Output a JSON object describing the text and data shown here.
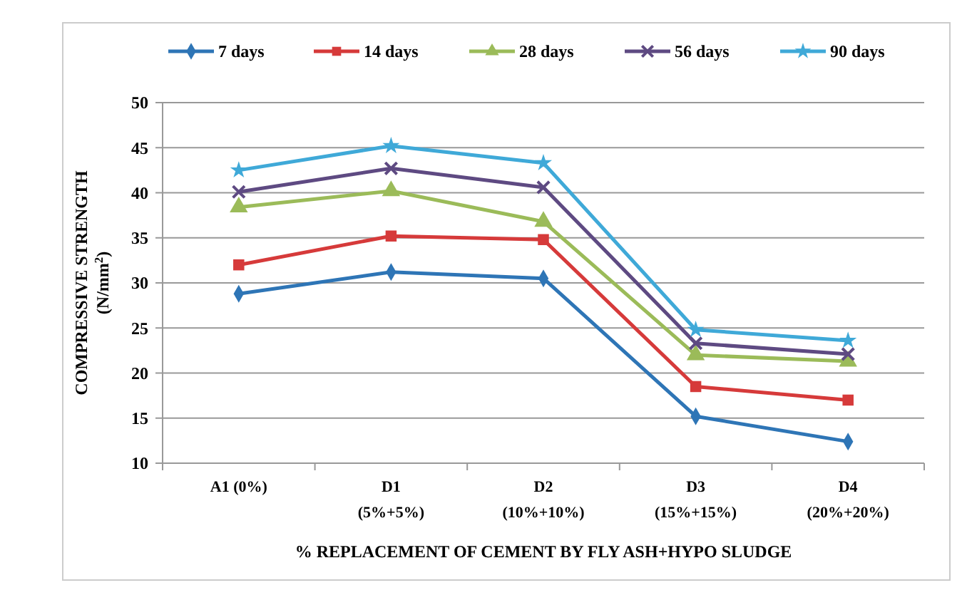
{
  "chart_data": {
    "type": "line",
    "categories": [
      "A1 (0%)",
      "D1\n(5%+5%)",
      "D2\n(10%+10%)",
      "D3\n(15%+15%)",
      "D4\n(20%+20%)"
    ],
    "xlabel": "% REPLACEMENT OF CEMENT BY FLY ASH+HYPO SLUDGE",
    "ylabel": "COMPRESSIVE STRENGTH\n(N/mm$^{2}$)",
    "ylim": [
      10,
      50
    ],
    "yticks": [
      10,
      15,
      20,
      25,
      30,
      35,
      40,
      45,
      50
    ],
    "grid": "y",
    "legend": "top",
    "series": [
      {
        "name": "7 days",
        "color": "#2e75b6",
        "marker": "diamond",
        "values": [
          28.8,
          31.2,
          30.5,
          15.2,
          12.4
        ]
      },
      {
        "name": "14 days",
        "color": "#d63a3a",
        "marker": "square",
        "values": [
          32,
          35.2,
          34.8,
          18.5,
          17
        ]
      },
      {
        "name": "28 days",
        "color": "#9bbb59",
        "marker": "triangle",
        "values": [
          38.4,
          40.2,
          36.8,
          22,
          21.3
        ]
      },
      {
        "name": "56 days",
        "color": "#5e4a82",
        "marker": "cross",
        "values": [
          40.1,
          42.7,
          40.6,
          23.3,
          22.1
        ]
      },
      {
        "name": "90 days",
        "color": "#3fa9d8",
        "marker": "star",
        "values": [
          42.5,
          45.2,
          43.3,
          24.8,
          23.6
        ]
      }
    ]
  }
}
